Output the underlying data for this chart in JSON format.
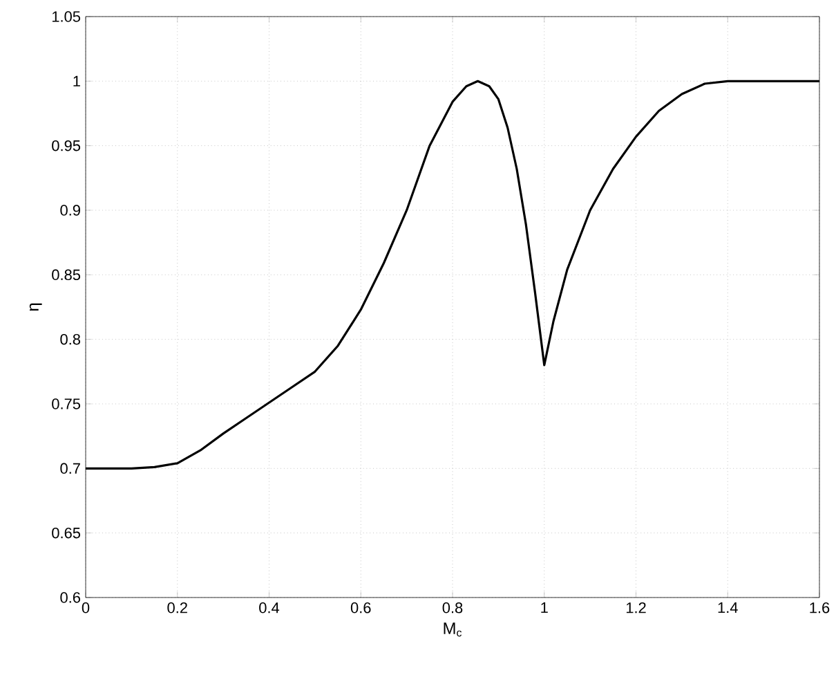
{
  "chart_data": {
    "type": "line",
    "xlabel": "M$_{c}$",
    "ylabel": "η",
    "x": [
      0,
      0.1,
      0.15,
      0.2,
      0.25,
      0.3,
      0.35,
      0.4,
      0.45,
      0.5,
      0.55,
      0.6,
      0.65,
      0.7,
      0.75,
      0.8,
      0.83,
      0.855,
      0.88,
      0.9,
      0.92,
      0.94,
      0.96,
      0.98,
      1.0,
      1.02,
      1.05,
      1.1,
      1.15,
      1.2,
      1.25,
      1.3,
      1.35,
      1.4,
      1.6
    ],
    "series": [
      {
        "color": "#000000",
        "values": [
          0.7,
          0.7,
          0.701,
          0.704,
          0.714,
          0.727,
          0.739,
          0.751,
          0.763,
          0.775,
          0.795,
          0.823,
          0.859,
          0.9,
          0.95,
          0.984,
          0.996,
          1.0,
          0.996,
          0.986,
          0.964,
          0.932,
          0.889,
          0.836,
          0.78,
          0.814,
          0.854,
          0.9,
          0.932,
          0.957,
          0.977,
          0.99,
          0.998,
          1.0,
          1.0
        ]
      }
    ],
    "xlim": [
      0,
      1.6
    ],
    "ylim": [
      0.6,
      1.05
    ],
    "xticks": [
      0,
      0.2,
      0.4,
      0.6,
      0.8,
      1,
      1.2,
      1.4,
      1.6
    ],
    "yticks": [
      0.6,
      0.65,
      0.7,
      0.75,
      0.8,
      0.85,
      0.9,
      0.95,
      1,
      1.05
    ],
    "grid": true,
    "marker": "none",
    "line_style": "solid"
  }
}
